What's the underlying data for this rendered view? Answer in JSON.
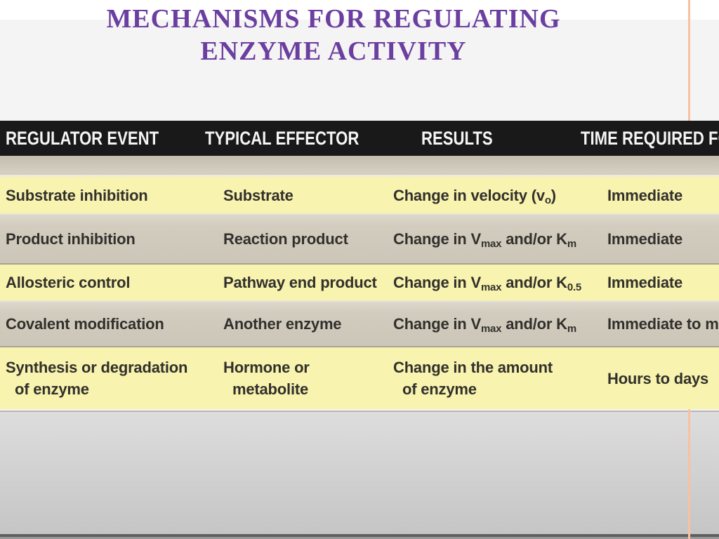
{
  "slide": {
    "title_line1": "MECHANISMS FOR REGULATING",
    "title_line2": "ENZYME ACTIVITY",
    "title_color": "#6b3fa0"
  },
  "table": {
    "columns": [
      "REGULATOR EVENT",
      "TYPICAL EFFECTOR",
      "RESULTS",
      "TIME REQUIRED FOR"
    ],
    "rows": [
      {
        "cells": [
          [
            [
              {
                "t": "Substrate inhibition"
              }
            ]
          ],
          [
            [
              {
                "t": "Substrate"
              }
            ]
          ],
          [
            [
              {
                "t": "Change in velocity (v"
              },
              {
                "t": "o",
                "sub": true
              },
              {
                "t": ")"
              }
            ]
          ],
          [
            [
              {
                "t": "Immediate"
              }
            ]
          ]
        ]
      },
      {
        "cells": [
          [
            [
              {
                "t": "Product inhibition"
              }
            ]
          ],
          [
            [
              {
                "t": "Reaction product"
              }
            ]
          ],
          [
            [
              {
                "t": "Change in V"
              },
              {
                "t": "max",
                "sub": true
              },
              {
                "t": " and/or K"
              },
              {
                "t": "m",
                "sub": true
              }
            ]
          ],
          [
            [
              {
                "t": "Immediate"
              }
            ]
          ]
        ]
      },
      {
        "cells": [
          [
            [
              {
                "t": "Allosteric control"
              }
            ]
          ],
          [
            [
              {
                "t": "Pathway end product"
              }
            ]
          ],
          [
            [
              {
                "t": "Change in V"
              },
              {
                "t": "max",
                "sub": true
              },
              {
                "t": " and/or K"
              },
              {
                "t": "0.5",
                "sub": true
              }
            ]
          ],
          [
            [
              {
                "t": "Immediate"
              }
            ]
          ]
        ]
      },
      {
        "cells": [
          [
            [
              {
                "t": "Covalent modification"
              }
            ]
          ],
          [
            [
              {
                "t": "Another enzyme"
              }
            ]
          ],
          [
            [
              {
                "t": "Change in V"
              },
              {
                "t": "max",
                "sub": true
              },
              {
                "t": " and/or K"
              },
              {
                "t": "m",
                "sub": true
              }
            ]
          ],
          [
            [
              {
                "t": "Immediate to min"
              }
            ]
          ]
        ]
      },
      {
        "cells": [
          [
            [
              {
                "t": "Synthesis or degradation"
              }
            ],
            [
              {
                "t": "of enzyme"
              }
            ]
          ],
          [
            [
              {
                "t": "Hormone or"
              }
            ],
            [
              {
                "t": "metabolite"
              }
            ]
          ],
          [
            [
              {
                "t": "Change in the amount"
              }
            ],
            [
              {
                "t": "of enzyme"
              }
            ]
          ],
          [
            [
              {
                "t": "Hours to days"
              }
            ]
          ]
        ]
      }
    ],
    "colors": {
      "header_bg": "#191919",
      "header_text": "#f5f5f5",
      "row_yellow": "#f8f3ae",
      "row_tan": "#d2ccbe",
      "body_text": "#32302c",
      "accent_line": "#f7c2a2"
    }
  }
}
